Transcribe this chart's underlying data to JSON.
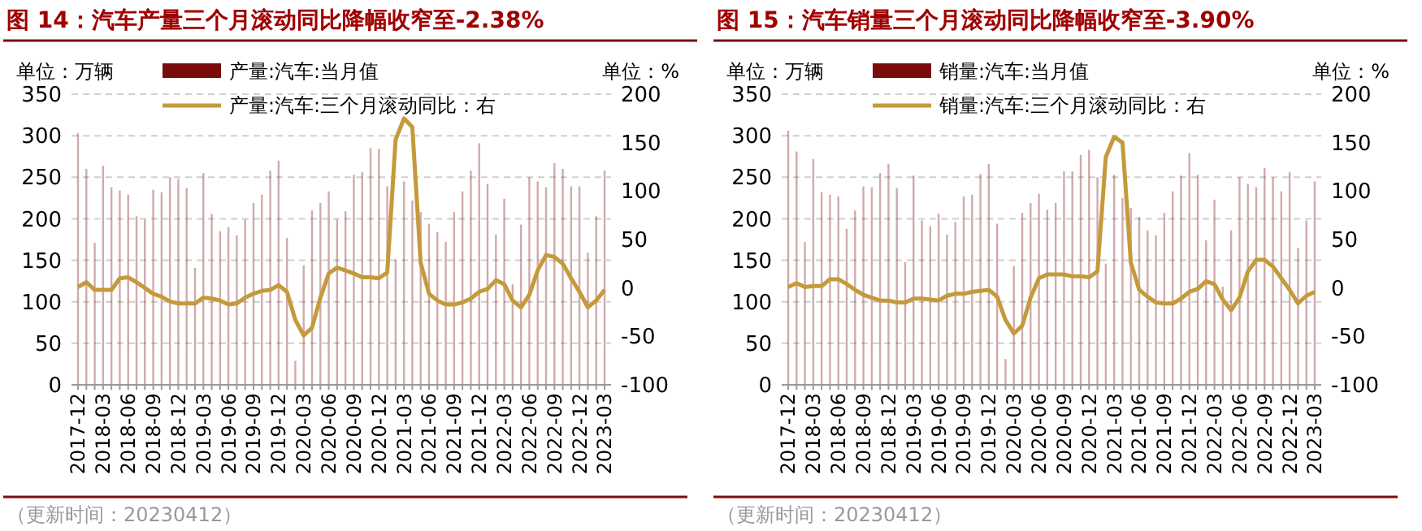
{
  "chart_data": [
    {
      "type": "bar",
      "title": "图 14：汽车产量三个月滚动同比降幅收窄至-2.38%",
      "ylabel": "单位：万辆",
      "y2label": "单位：%",
      "categories": [
        "2017-12",
        null,
        null,
        "2018-03",
        null,
        null,
        "2018-06",
        null,
        null,
        "2018-09",
        null,
        null,
        "2018-12",
        null,
        null,
        "2019-03",
        null,
        null,
        "2019-06",
        null,
        null,
        "2019-09",
        null,
        null,
        "2019-12",
        null,
        null,
        "2020-03",
        null,
        null,
        "2020-06",
        null,
        null,
        "2020-09",
        null,
        null,
        "2020-12",
        null,
        null,
        "2021-03",
        null,
        null,
        "2021-06",
        null,
        null,
        "2021-09",
        null,
        null,
        "2021-12",
        null,
        null,
        "2022-03",
        null,
        null,
        "2022-06",
        null,
        null,
        "2022-09",
        null,
        null,
        "2022-12",
        null,
        null,
        "2023-03"
      ],
      "series": [
        {
          "name": "产量:汽车:当月值",
          "color": "#7b0c0c",
          "values": [
            303,
            260,
            171,
            264,
            238,
            234,
            229,
            203,
            199,
            235,
            232,
            250,
            248,
            237,
            141,
            255,
            206,
            185,
            190,
            180,
            199,
            219,
            229,
            258,
            270,
            177,
            29,
            144,
            210,
            219,
            233,
            199,
            209,
            253,
            256,
            285,
            284,
            239,
            151,
            245,
            222,
            208,
            194,
            184,
            172,
            208,
            233,
            258,
            291,
            242,
            181,
            224,
            121,
            193,
            250,
            245,
            238,
            267,
            260,
            239,
            239,
            159,
            203,
            258
          ]
        },
        {
          "type": "line",
          "name": "产量:汽车:三个月滚动同比：右",
          "color": "#c49a3a",
          "axis": "y2",
          "values": [
            1,
            6,
            -2,
            -2,
            -2,
            10,
            11,
            6,
            0,
            -6,
            -9,
            -14,
            -16,
            -16,
            -16,
            -10,
            -11,
            -13,
            -17,
            -16,
            -10,
            -6,
            -3,
            -2,
            3,
            -4,
            -33,
            -49,
            -41,
            -10,
            15,
            21,
            18,
            15,
            11,
            11,
            10,
            16,
            153,
            175,
            166,
            26,
            -6,
            -13,
            -17,
            -17,
            -15,
            -11,
            -4,
            -1,
            8,
            4,
            -13,
            -20,
            -7,
            18,
            34,
            32,
            25,
            10,
            -4,
            -20,
            -13,
            -2
          ]
        }
      ],
      "ylim": [
        0,
        350
      ],
      "yticks": [
        0,
        50,
        100,
        150,
        200,
        250,
        300,
        350
      ],
      "y2lim": [
        -100,
        200
      ],
      "y2ticks": [
        -100,
        -50,
        0,
        50,
        100,
        150,
        200
      ],
      "grid": "y",
      "legend": "top",
      "annotations": [
        "（更新时间：20230412）"
      ]
    },
    {
      "type": "bar",
      "title": "图 15：汽车销量三个月滚动同比降幅收窄至-3.90%",
      "ylabel": "单位：万辆",
      "y2label": "单位：%",
      "categories": [
        "2017-12",
        null,
        null,
        "2018-03",
        null,
        null,
        "2018-06",
        null,
        null,
        "2018-09",
        null,
        null,
        "2018-12",
        null,
        null,
        "2019-03",
        null,
        null,
        "2019-06",
        null,
        null,
        "2019-09",
        null,
        null,
        "2019-12",
        null,
        null,
        "2020-03",
        null,
        null,
        "2020-06",
        null,
        null,
        "2020-09",
        null,
        null,
        "2020-12",
        null,
        null,
        "2021-03",
        null,
        null,
        "2021-06",
        null,
        null,
        "2021-09",
        null,
        null,
        "2021-12",
        null,
        null,
        "2022-03",
        null,
        null,
        "2022-06",
        null,
        null,
        "2022-09",
        null,
        null,
        "2022-12",
        null,
        null,
        "2023-03"
      ],
      "series": [
        {
          "name": "销量:汽车:当月值",
          "color": "#7b0c0c",
          "values": [
            306,
            281,
            172,
            272,
            232,
            229,
            227,
            188,
            210,
            239,
            238,
            255,
            266,
            237,
            148,
            252,
            198,
            191,
            206,
            181,
            196,
            227,
            229,
            254,
            266,
            194,
            31,
            143,
            207,
            219,
            230,
            211,
            219,
            257,
            257,
            277,
            283,
            250,
            146,
            253,
            225,
            213,
            202,
            186,
            180,
            207,
            233,
            252,
            279,
            253,
            174,
            223,
            118,
            186,
            250,
            242,
            238,
            261,
            250,
            233,
            256,
            165,
            198,
            245
          ]
        },
        {
          "type": "line",
          "name": "销量:汽车:三个月滚动同比：右",
          "color": "#c49a3a",
          "axis": "y2",
          "values": [
            1,
            5,
            1,
            2,
            2,
            9,
            9,
            4,
            -2,
            -7,
            -10,
            -13,
            -13,
            -15,
            -15,
            -11,
            -11,
            -12,
            -13,
            -8,
            -6,
            -6,
            -4,
            -3,
            -2,
            -9,
            -33,
            -47,
            -39,
            -10,
            10,
            14,
            14,
            14,
            12,
            12,
            11,
            17,
            135,
            156,
            150,
            26,
            -2,
            -9,
            -15,
            -16,
            -16,
            -11,
            -4,
            -1,
            7,
            4,
            -12,
            -23,
            -10,
            17,
            29,
            29,
            22,
            10,
            -2,
            -16,
            -8,
            -4
          ]
        }
      ],
      "ylim": [
        0,
        350
      ],
      "yticks": [
        0,
        50,
        100,
        150,
        200,
        250,
        300,
        350
      ],
      "y2lim": [
        -100,
        200
      ],
      "y2ticks": [
        -100,
        -50,
        0,
        50,
        100,
        150,
        200
      ],
      "grid": "y",
      "legend": "top",
      "annotations": [
        "（更新时间：20230412）"
      ]
    }
  ]
}
